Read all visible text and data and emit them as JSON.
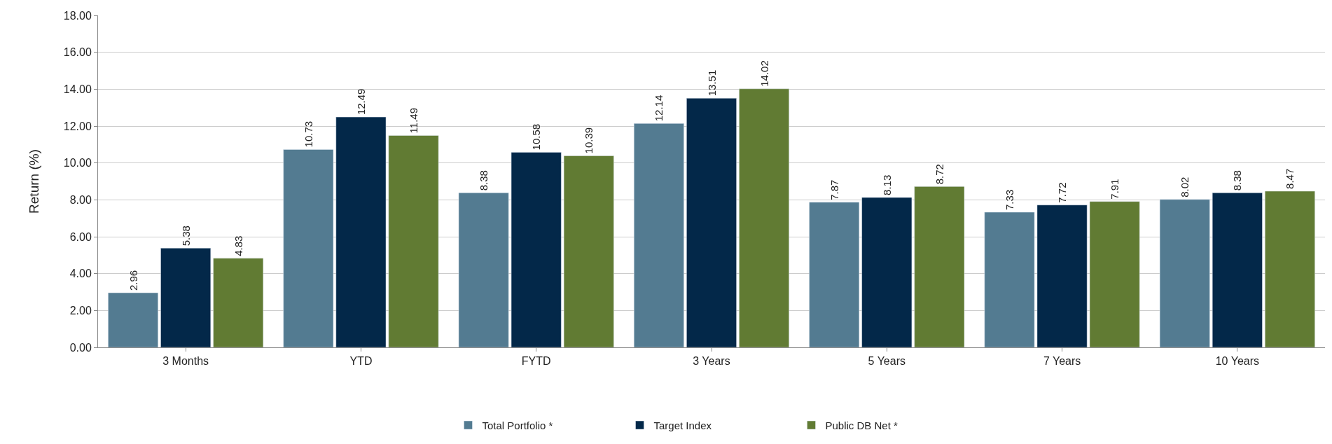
{
  "chart_data": {
    "type": "bar",
    "ylabel": "Return (%)",
    "categories": [
      "3 Months",
      "YTD",
      "FYTD",
      "3 Years",
      "5 Years",
      "7 Years",
      "10 Years"
    ],
    "series": [
      {
        "name": "Total Portfolio *",
        "color": "#537b91",
        "values": [
          2.96,
          10.73,
          8.38,
          12.14,
          7.87,
          7.33,
          8.02
        ]
      },
      {
        "name": "Target Index",
        "color": "#032849",
        "values": [
          5.38,
          12.49,
          10.58,
          13.51,
          8.13,
          7.72,
          8.38
        ]
      },
      {
        "name": "Public DB Net *",
        "color": "#617b33",
        "values": [
          4.83,
          11.49,
          10.39,
          14.02,
          8.72,
          7.91,
          8.47
        ]
      }
    ],
    "ylim": [
      0,
      18
    ],
    "yticks": [
      {
        "value": 0,
        "label": "0.00"
      },
      {
        "value": 2,
        "label": "2.00"
      },
      {
        "value": 4,
        "label": "4.00"
      },
      {
        "value": 6,
        "label": "6.00"
      },
      {
        "value": 8,
        "label": "8.00"
      },
      {
        "value": 10,
        "label": "10.00"
      },
      {
        "value": 12,
        "label": "12.00"
      },
      {
        "value": 14,
        "label": "14.00"
      },
      {
        "value": 16,
        "label": "16.00"
      },
      {
        "value": 18,
        "label": "18.00"
      }
    ],
    "grid": "y",
    "legend": "bottom",
    "data_labels": true
  }
}
